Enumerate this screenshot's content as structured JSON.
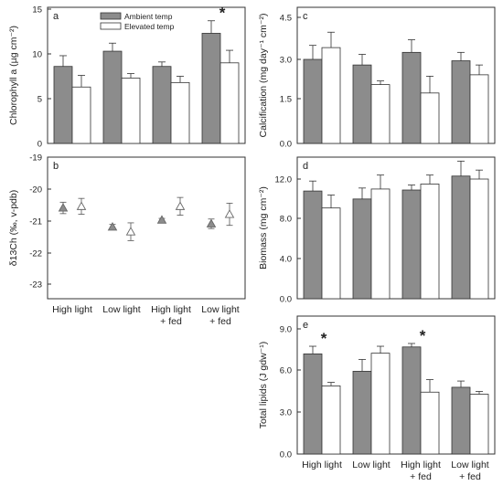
{
  "chart_data": [
    {
      "panel": "a",
      "type": "bar",
      "ylabel": "Chlorophyll a (µg cm⁻²)",
      "ylim": [
        0,
        15
      ],
      "yticks": [
        "0",
        "5",
        "10",
        "15"
      ],
      "categories": [
        "High light",
        "Low light",
        "High light + fed",
        "Low light + fed"
      ],
      "series": [
        {
          "name": "Ambient temp",
          "color": "#8c8c8c",
          "values": [
            8.6,
            10.3,
            8.6,
            12.3
          ],
          "errors": [
            1.2,
            0.9,
            0.5,
            1.4
          ]
        },
        {
          "name": "Elevated temp",
          "color": "#ffffff",
          "values": [
            6.3,
            7.3,
            6.8,
            9.0
          ],
          "errors": [
            1.3,
            0.5,
            0.7,
            1.4
          ]
        }
      ],
      "legend": "top",
      "annotations": [
        {
          "category": 3,
          "text": "*"
        }
      ]
    },
    {
      "panel": "b",
      "type": "scatter",
      "ylabel": "δ13Ch (‰, v-pdb)",
      "ylim": [
        -23.5,
        -19
      ],
      "yticks": [
        "-19",
        "-20",
        "-21",
        "-22",
        "-23"
      ],
      "categories": [
        "High light",
        "Low light",
        "High light + fed",
        "Low light + fed"
      ],
      "series": [
        {
          "name": "Ambient temp",
          "marker": "filled-triangle",
          "values": [
            -20.6,
            -21.2,
            -20.98,
            -21.1
          ],
          "errors": [
            0.18,
            0.08,
            0.05,
            0.15
          ]
        },
        {
          "name": "Elevated temp",
          "marker": "open-triangle",
          "values": [
            -20.55,
            -21.35,
            -20.55,
            -20.8
          ],
          "errors": [
            0.25,
            0.28,
            0.28,
            0.35
          ]
        }
      ]
    },
    {
      "panel": "c",
      "type": "bar",
      "ylabel": "Calcification (mg day⁻¹ cm⁻²)",
      "ylim": [
        0,
        4.5
      ],
      "yticks": [
        "0.0",
        "1.5",
        "3.0",
        "4.5"
      ],
      "categories": [
        "High light",
        "Low light",
        "High light + fed",
        "Low light + fed"
      ],
      "series": [
        {
          "name": "Ambient temp",
          "color": "#8c8c8c",
          "values": [
            3.0,
            2.8,
            3.25,
            2.95
          ],
          "errors": [
            0.5,
            0.38,
            0.45,
            0.3
          ]
        },
        {
          "name": "Elevated temp",
          "color": "#ffffff",
          "values": [
            3.42,
            2.1,
            1.8,
            2.45
          ],
          "errors": [
            0.55,
            0.13,
            0.6,
            0.35
          ]
        }
      ]
    },
    {
      "panel": "d",
      "type": "bar",
      "ylabel": "Biomass (mg cm⁻²)",
      "ylim": [
        0,
        14
      ],
      "yticks": [
        "0.0",
        "4.0",
        "8.0",
        "12.0"
      ],
      "categories": [
        "High light",
        "Low light",
        "High light + fed",
        "Low light + fed"
      ],
      "series": [
        {
          "name": "Ambient temp",
          "color": "#8c8c8c",
          "values": [
            10.8,
            10.0,
            10.9,
            12.3
          ],
          "errors": [
            1.0,
            1.1,
            0.5,
            1.5
          ]
        },
        {
          "name": "Elevated temp",
          "color": "#ffffff",
          "values": [
            9.1,
            11.0,
            11.5,
            12.0
          ],
          "errors": [
            1.3,
            1.4,
            0.9,
            0.9
          ]
        }
      ]
    },
    {
      "panel": "e",
      "type": "bar",
      "ylabel": "Total lipids (J gdw⁻¹)",
      "ylim": [
        0,
        9.5
      ],
      "yticks": [
        "0.0",
        "3.0",
        "6.0",
        "9.0"
      ],
      "categories": [
        "High light",
        "Low light",
        "High light + fed",
        "Low light + fed"
      ],
      "series": [
        {
          "name": "Ambient temp",
          "color": "#8c8c8c",
          "values": [
            7.2,
            5.95,
            7.7,
            4.8
          ],
          "errors": [
            0.55,
            0.85,
            0.25,
            0.45
          ]
        },
        {
          "name": "Elevated temp",
          "color": "#ffffff",
          "values": [
            4.9,
            7.25,
            4.45,
            4.3
          ],
          "errors": [
            0.25,
            0.5,
            0.9,
            0.2
          ]
        }
      ],
      "annotations": [
        {
          "category": 0,
          "text": "*"
        },
        {
          "category": 2,
          "text": "*"
        }
      ]
    }
  ],
  "x_labels": [
    {
      "line1": "High light",
      "line2": ""
    },
    {
      "line1": "Low light",
      "line2": ""
    },
    {
      "line1": "High light",
      "line2": "+ fed"
    },
    {
      "line1": "Low light",
      "line2": "+ fed"
    }
  ]
}
